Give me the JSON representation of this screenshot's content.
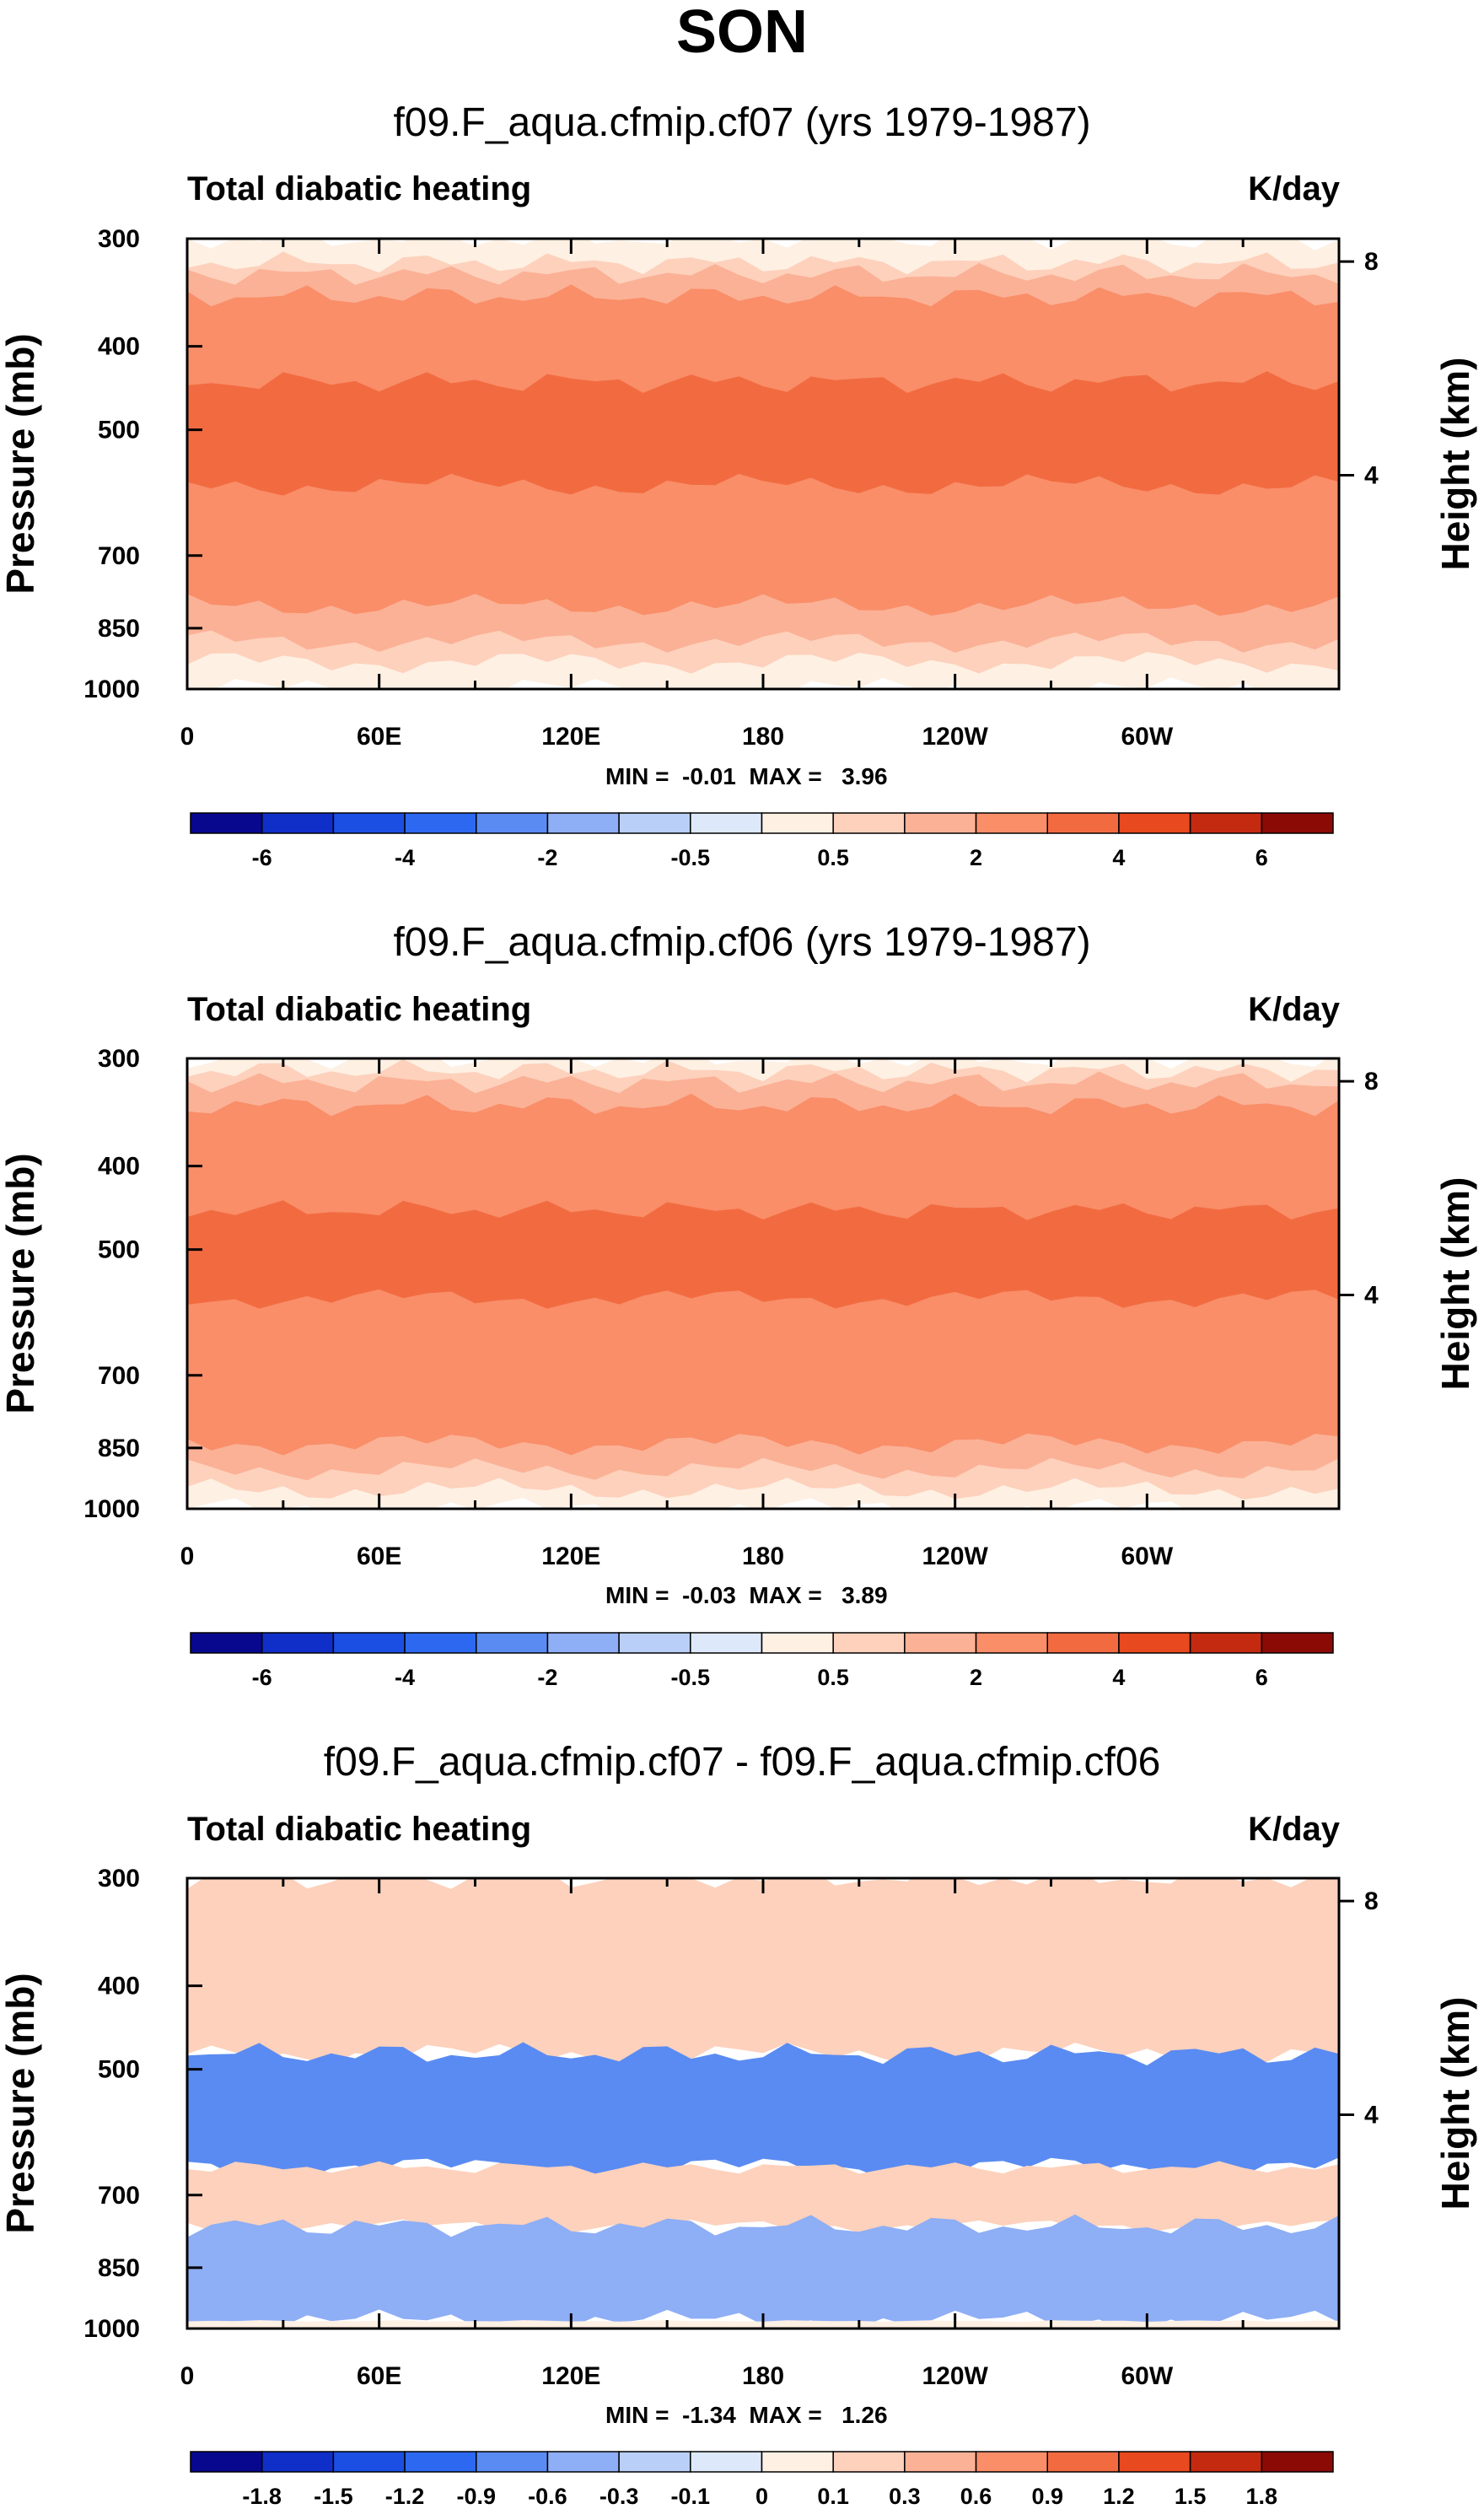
{
  "page_title": "SON",
  "colorbar_colors": [
    "#08088f",
    "#0f2fc8",
    "#1b4fe3",
    "#2c69f0",
    "#5a8bf2",
    "#8eaef5",
    "#b9cff8",
    "#dde9fb",
    "#fef0e3",
    "#fdd1bc",
    "#fbb196",
    "#f98e69",
    "#f26b40",
    "#e8491e",
    "#c42a10",
    "#8c0a05"
  ],
  "panels": [
    {
      "title": "f09.F_aqua.cfmip.cf07 (yrs 1979-1987)",
      "left_label": "Total diabatic heating",
      "right_label": "K/day",
      "min_max": "MIN =  -0.01  MAX =   3.96",
      "colorbar_labels": [
        "-6",
        "-4",
        "-2",
        "-0.5",
        "0.5",
        "2",
        "4",
        "6"
      ]
    },
    {
      "title": "f09.F_aqua.cfmip.cf06 (yrs 1979-1987)",
      "left_label": "Total diabatic heating",
      "right_label": "K/day",
      "min_max": "MIN =  -0.03  MAX =   3.89",
      "colorbar_labels": [
        "-6",
        "-4",
        "-2",
        "-0.5",
        "0.5",
        "2",
        "4",
        "6"
      ]
    },
    {
      "title": "f09.F_aqua.cfmip.cf07 - f09.F_aqua.cfmip.cf06",
      "left_label": "Total diabatic heating",
      "right_label": "K/day",
      "min_max": "MIN =  -1.34  MAX =   1.26",
      "colorbar_labels": [
        "-1.8",
        "-1.5",
        "-1.2",
        "-0.9",
        "-0.6",
        "-0.3",
        "-0.1",
        "0",
        "0.1",
        "0.3",
        "0.6",
        "0.9",
        "1.2",
        "1.5",
        "1.8"
      ]
    }
  ],
  "chart_data": [
    {
      "type": "heatmap",
      "title": "f09.F_aqua.cfmip.cf07 (yrs 1979-1987)",
      "x_ticks": [
        "0",
        "60E",
        "120E",
        "180",
        "120W",
        "60W"
      ],
      "y_ticks": [
        "300",
        "400",
        "500",
        "700",
        "850",
        "1000"
      ],
      "y_right_ticks": [
        "8",
        "4"
      ],
      "ylabel": "Pressure (mb)",
      "ylabel_right": "Height (km)",
      "units": "K/day",
      "min": -0.01,
      "max": 3.96,
      "levels": [
        -6,
        -5,
        -4,
        -3,
        -2,
        -1,
        -0.5,
        0,
        0.5,
        1,
        2,
        3,
        4,
        5,
        6
      ],
      "layers": [
        {
          "p_top": 300,
          "p_bottom": 1000,
          "value": 0.3
        },
        {
          "p_top": 320,
          "p_bottom": 930,
          "value": 0.75
        },
        {
          "p_top": 330,
          "p_bottom": 880,
          "value": 1.5
        },
        {
          "p_top": 350,
          "p_bottom": 800,
          "value": 2.5
        },
        {
          "p_top": 440,
          "p_bottom": 580,
          "value": 3.5
        }
      ]
    },
    {
      "type": "heatmap",
      "title": "f09.F_aqua.cfmip.cf06 (yrs 1979-1987)",
      "x_ticks": [
        "0",
        "60E",
        "120E",
        "180",
        "120W",
        "60W"
      ],
      "y_ticks": [
        "300",
        "400",
        "500",
        "700",
        "850",
        "1000"
      ],
      "y_right_ticks": [
        "8",
        "4"
      ],
      "ylabel": "Pressure (mb)",
      "ylabel_right": "Height (km)",
      "units": "K/day",
      "min": -0.03,
      "max": 3.89,
      "levels": [
        -6,
        -5,
        -4,
        -3,
        -2,
        -1,
        -0.5,
        0,
        0.5,
        1,
        2,
        3,
        4,
        5,
        6
      ],
      "layers": [
        {
          "p_top": 300,
          "p_bottom": 1000,
          "value": 0.3
        },
        {
          "p_top": 310,
          "p_bottom": 950,
          "value": 0.75
        },
        {
          "p_top": 320,
          "p_bottom": 900,
          "value": 1.5
        },
        {
          "p_top": 340,
          "p_bottom": 840,
          "value": 2.5
        },
        {
          "p_top": 450,
          "p_bottom": 570,
          "value": 3.5
        }
      ]
    },
    {
      "type": "heatmap",
      "title": "f09.F_aqua.cfmip.cf07 - f09.F_aqua.cfmip.cf06",
      "x_ticks": [
        "0",
        "60E",
        "120E",
        "180",
        "120W",
        "60W"
      ],
      "y_ticks": [
        "300",
        "400",
        "500",
        "700",
        "850",
        "1000"
      ],
      "y_right_ticks": [
        "8",
        "4"
      ],
      "ylabel": "Pressure (mb)",
      "ylabel_right": "Height (km)",
      "units": "K/day",
      "min": -1.34,
      "max": 1.26,
      "levels": [
        -1.8,
        -1.5,
        -1.2,
        -0.9,
        -0.6,
        -0.3,
        -0.1,
        0,
        0.1,
        0.3,
        0.6,
        0.9,
        1.2,
        1.5,
        1.8
      ],
      "layers": [
        {
          "p_top": 300,
          "p_bottom": 480,
          "value": 0.3
        },
        {
          "p_top": 480,
          "p_bottom": 650,
          "value": -0.6
        },
        {
          "p_top": 650,
          "p_bottom": 760,
          "value": 0.3
        },
        {
          "p_top": 760,
          "p_bottom": 980,
          "value": -0.3
        },
        {
          "p_top": 980,
          "p_bottom": 1000,
          "value": 0.05
        }
      ]
    }
  ]
}
